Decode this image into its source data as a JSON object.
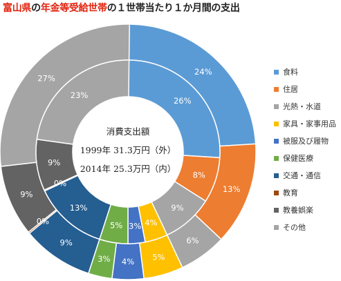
{
  "title": {
    "prefix": "富山県",
    "middle": "の",
    "highlight": "年金等受給世帯",
    "suffix": "の１世帯当たり１か月間の支出"
  },
  "center": {
    "line1": "消費支出額",
    "line2": "1999年 31.3万円（外）",
    "line3": "2014年 25.3万円（内）"
  },
  "chart_data": {
    "type": "pie",
    "categories": [
      "食料",
      "住居",
      "光熱・水道",
      "家具・家事用品",
      "被服及び履物",
      "保健医療",
      "交通・通信",
      "教育",
      "教養娯楽",
      "その他"
    ],
    "colors": [
      "#5b9bd5",
      "#ed7d31",
      "#a5a5a5",
      "#ffc000",
      "#4472c4",
      "#70ad47",
      "#255e91",
      "#9e480e",
      "#636363",
      "#a5a5a5"
    ],
    "series": [
      {
        "name": "1999年",
        "ring": "outer",
        "values": [
          24,
          13,
          6,
          5,
          4,
          3,
          9,
          0,
          9,
          27
        ],
        "labels": [
          "24%",
          "13%",
          "6%",
          "5%",
          "4%",
          "3%",
          "9%",
          "0%",
          "9%",
          "27%"
        ]
      },
      {
        "name": "2014年",
        "ring": "inner",
        "values": [
          26,
          8,
          9,
          4,
          3,
          5,
          13,
          0,
          9,
          23
        ],
        "labels": [
          "26%",
          "8%",
          "9%",
          "4%",
          "3%",
          "5%",
          "13%",
          "0%",
          "9%",
          "23%"
        ]
      }
    ],
    "legend_position": "right"
  }
}
